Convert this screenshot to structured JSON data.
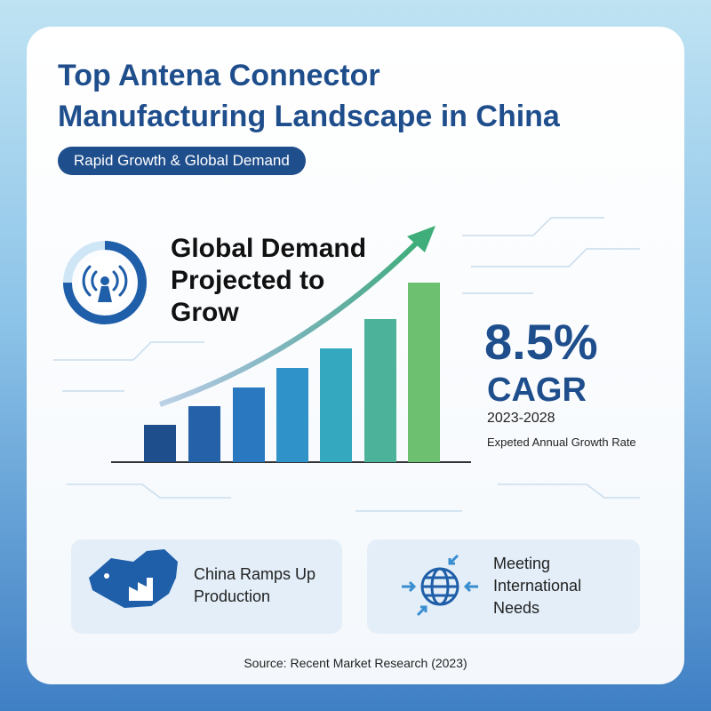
{
  "header": {
    "title_lines": [
      "Top Antena Connector",
      "Manufacturing Landscape in China"
    ],
    "badge": "Rapid Growth & Global Demand"
  },
  "hero": {
    "heading_lines": [
      "Global Demand",
      "Projected to",
      "Grow"
    ],
    "stat": "8.5%",
    "stat_label": "CAGR",
    "period": "2023-2028",
    "note": "Expeted Annual Growth Rate"
  },
  "cards": [
    {
      "lines": [
        "China Ramps Up",
        "Production"
      ]
    },
    {
      "lines": [
        "Meeting",
        "International",
        "Needs"
      ]
    }
  ],
  "footer": {
    "source": "Source: Recent Market Research (2023)"
  }
}
